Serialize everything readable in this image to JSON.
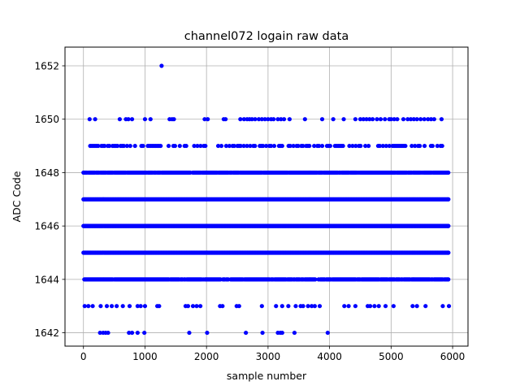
{
  "chart_data": {
    "type": "scatter",
    "title": "channel072 logain raw data",
    "xlabel": "sample number",
    "ylabel": "ADC Code",
    "xlim": [
      -300,
      6250
    ],
    "ylim": [
      1641.5,
      1652.7
    ],
    "xticks": [
      0,
      1000,
      2000,
      3000,
      4000,
      5000,
      6000
    ],
    "xtick_labels": [
      "0",
      "1000",
      "2000",
      "3000",
      "4000",
      "5000",
      "6000"
    ],
    "yticks": [
      1642,
      1644,
      1646,
      1648,
      1650,
      1652
    ],
    "ytick_labels": [
      "1642",
      "1644",
      "1646",
      "1648",
      "1650",
      "1652"
    ],
    "grid": true,
    "marker_color": "#0000ff",
    "x_range_samples": [
      0,
      5930
    ],
    "series": [
      {
        "values_summary": "ADC codes per sample; dense at 1644-1648, sparser at 1643 and 1649-1650, rare at 1642 and one point at 1652",
        "levels": [
          {
            "y": 1646,
            "x": [
              0,
              5930
            ],
            "density": "continuous"
          },
          {
            "y": 1647,
            "x": [
              0,
              5930
            ],
            "density": "continuous"
          },
          {
            "y": 1645,
            "x": [
              0,
              5930
            ],
            "density": "continuous"
          },
          {
            "y": 1648,
            "x": [
              0,
              5930
            ],
            "density": "near-continuous"
          },
          {
            "y": 1644,
            "x": [
              0,
              5930
            ],
            "density": "near-continuous"
          },
          {
            "y": 1649,
            "x": [
              110,
              5850
            ],
            "density": "moderate"
          },
          {
            "y": 1643,
            "x": [
              20,
              5940
            ],
            "density": "sparse"
          },
          {
            "y": 1650,
            "x": [
              100,
              5820
            ],
            "density": "sparse"
          },
          {
            "y": 1642,
            "x": [
              270,
              3970
            ],
            "density": "rare"
          },
          {
            "y": 1652,
            "x": [
              1270,
              1270
            ],
            "density": "single"
          }
        ]
      }
    ],
    "points": {
      "1652": [
        1270
      ],
      "1650": [
        100,
        190,
        590,
        690,
        730,
        790,
        1000,
        1090,
        1400,
        1440,
        1470,
        1970,
        2020,
        2280,
        2310,
        2550,
        2610,
        2660,
        2700,
        2740,
        2790,
        2850,
        2900,
        2950,
        3000,
        3050,
        3090,
        3160,
        3210,
        3260,
        3350,
        3600,
        3880,
        4060,
        4230,
        4420,
        4500,
        4550,
        4600,
        4650,
        4700,
        4770,
        4830,
        4900,
        4970,
        5000,
        5050,
        5100,
        5200,
        5270,
        5320,
        5370,
        5420,
        5480,
        5540,
        5600,
        5650,
        5700,
        5820
      ],
      "1643": [
        20,
        80,
        150,
        280,
        380,
        460,
        540,
        640,
        750,
        880,
        930,
        1000,
        1200,
        1230,
        1660,
        1700,
        1780,
        1840,
        1900,
        2220,
        2260,
        2490,
        2530,
        2900,
        3130,
        3230,
        3330,
        3450,
        3530,
        3570,
        3650,
        3710,
        3760,
        3840,
        4240,
        4310,
        4420,
        4620,
        4660,
        4730,
        4800,
        4910,
        5040,
        5350,
        5420,
        5560,
        5840,
        5940
      ],
      "1642": [
        270,
        320,
        360,
        400,
        740,
        790,
        880,
        990,
        1720,
        2010,
        2640,
        2910,
        3160,
        3200,
        3230,
        3430,
        3970
      ]
    }
  }
}
